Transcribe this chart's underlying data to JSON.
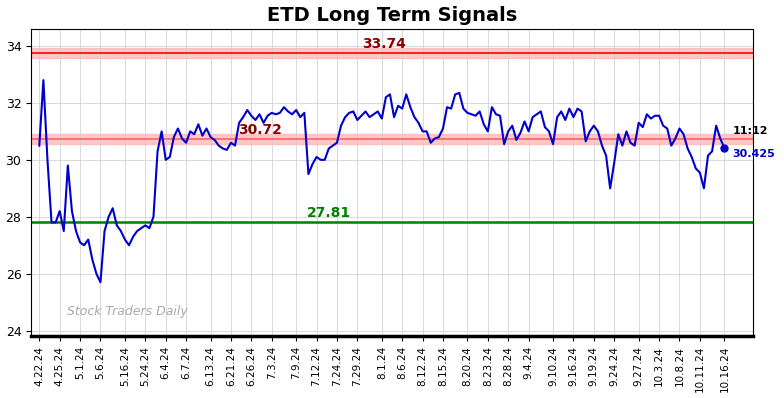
{
  "title": "ETD Long Term Signals",
  "title_fontsize": 14,
  "background_color": "#ffffff",
  "line_color": "#0000cc",
  "grid_color": "#cccccc",
  "upper_red_line": 33.74,
  "lower_red_line": 30.72,
  "green_line": 27.81,
  "ylim": [
    23.8,
    34.6
  ],
  "yticks": [
    24,
    26,
    28,
    30,
    32,
    34
  ],
  "watermark": "Stock Traders Daily",
  "last_time": "11:12",
  "last_price": "30.425",
  "upper_label": "33.74",
  "lower_label": "30.72",
  "green_label": "27.81",
  "x_labels": [
    "4.22.24",
    "4.25.24",
    "5.1.24",
    "5.6.24",
    "5.16.24",
    "5.24.24",
    "6.4.24",
    "6.7.24",
    "6.13.24",
    "6.21.24",
    "6.26.24",
    "7.3.24",
    "7.9.24",
    "7.12.24",
    "7.24.24",
    "7.29.24",
    "8.1.24",
    "8.6.24",
    "8.12.24",
    "8.15.24",
    "8.20.24",
    "8.23.24",
    "8.28.24",
    "9.4.24",
    "9.10.24",
    "9.16.24",
    "9.19.24",
    "9.24.24",
    "9.27.24",
    "10.3.24",
    "10.8.24",
    "10.11.24",
    "10.16.24"
  ],
  "y_values": [
    30.5,
    32.8,
    30.0,
    27.8,
    27.8,
    28.2,
    27.5,
    29.8,
    28.2,
    27.5,
    27.1,
    27.0,
    27.2,
    26.5,
    26.0,
    25.7,
    27.5,
    28.0,
    28.3,
    27.7,
    27.5,
    27.2,
    27.0,
    27.3,
    27.5,
    27.6,
    27.7,
    27.6,
    28.0,
    30.3,
    31.0,
    30.0,
    30.1,
    30.8,
    31.1,
    30.75,
    30.6,
    31.0,
    30.9,
    31.25,
    30.85,
    31.1,
    30.8,
    30.7,
    30.5,
    30.4,
    30.35,
    30.6,
    30.5,
    31.3,
    31.5,
    31.75,
    31.55,
    31.4,
    31.6,
    31.3,
    31.55,
    31.65,
    31.6,
    31.65,
    31.85,
    31.7,
    31.6,
    31.75,
    31.5,
    31.65,
    29.5,
    29.85,
    30.1,
    30.0,
    30.0,
    30.4,
    30.5,
    30.6,
    31.2,
    31.5,
    31.65,
    31.7,
    31.4,
    31.55,
    31.7,
    31.5,
    31.6,
    31.7,
    31.45,
    32.2,
    32.3,
    31.5,
    31.9,
    31.8,
    32.3,
    31.85,
    31.5,
    31.3,
    31.0,
    31.0,
    30.6,
    30.75,
    30.8,
    31.1,
    31.85,
    31.8,
    32.3,
    32.35,
    31.8,
    31.65,
    31.6,
    31.55,
    31.7,
    31.25,
    31.0,
    31.85,
    31.6,
    31.55,
    30.55,
    31.0,
    31.2,
    30.7,
    30.95,
    31.35,
    31.0,
    31.5,
    31.6,
    31.7,
    31.15,
    31.0,
    30.55,
    31.5,
    31.7,
    31.4,
    31.8,
    31.5,
    31.8,
    31.7,
    30.65,
    31.0,
    31.2,
    31.0,
    30.5,
    30.15,
    29.0,
    29.9,
    30.9,
    30.5,
    31.0,
    30.6,
    30.5,
    31.3,
    31.15,
    31.6,
    31.45,
    31.55,
    31.55,
    31.2,
    31.1,
    30.5,
    30.75,
    31.1,
    30.9,
    30.4,
    30.1,
    29.7,
    29.55,
    29.0,
    30.15,
    30.3,
    31.2,
    30.75,
    30.425
  ]
}
